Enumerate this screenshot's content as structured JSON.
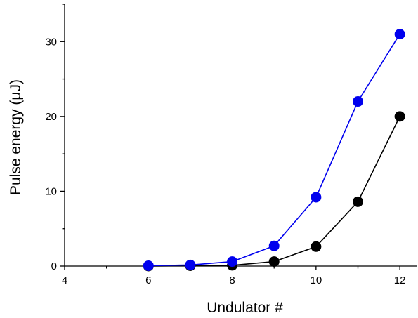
{
  "chart_data": {
    "type": "line",
    "xlabel": "Undulator #",
    "ylabel": "Pulse energy (μJ)",
    "xlim": [
      4,
      12.4
    ],
    "ylim": [
      0,
      35
    ],
    "x_ticks": [
      4,
      6,
      8,
      10,
      12
    ],
    "x_tick_labels": [
      "4",
      "6",
      "8",
      "10",
      "12"
    ],
    "y_ticks": [
      0,
      10,
      20,
      30
    ],
    "y_tick_labels": [
      "0",
      "10",
      "20",
      "30"
    ],
    "grid": false,
    "series": [
      {
        "color": "#0000ee",
        "marker": "circle",
        "x": [
          6,
          7,
          8,
          9,
          10,
          11,
          12
        ],
        "y": [
          0.05,
          0.15,
          0.6,
          2.7,
          9.2,
          22.0,
          31.0
        ]
      },
      {
        "color": "#000000",
        "marker": "circle",
        "x": [
          6,
          7,
          8,
          9,
          10,
          11,
          12
        ],
        "y": [
          0.0,
          0.05,
          0.1,
          0.6,
          2.6,
          8.6,
          20.0
        ]
      }
    ]
  }
}
